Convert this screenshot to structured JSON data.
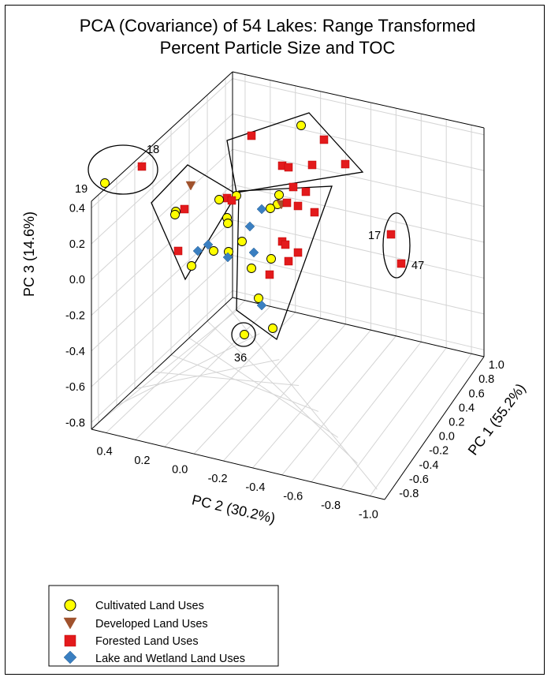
{
  "chart_data": {
    "type": "scatter",
    "title_line1": "PCA (Covariance) of 54 Lakes: Range Transformed",
    "title_line2": "Percent Particle Size and TOC",
    "axes": {
      "pc1": {
        "label": "PC 1 (55.2%)",
        "ticks": [
          "-0.8",
          "-0.6",
          "-0.4",
          "-0.2",
          "0.0",
          "0.2",
          "0.4",
          "0.6",
          "0.8",
          "1.0"
        ]
      },
      "pc2": {
        "label": "PC 2 (30.2%)",
        "ticks": [
          "0.4",
          "0.2",
          "0.0",
          "-0.2",
          "-0.4",
          "-0.6",
          "-0.8",
          "-1.0"
        ]
      },
      "pc3": {
        "label": "PC 3 (14.6%)",
        "ticks": [
          "0.4",
          "0.2",
          "0.0",
          "-0.2",
          "-0.4",
          "-0.6",
          "-0.8"
        ]
      }
    },
    "grid": true,
    "legend_position": "bottom-left",
    "series": [
      {
        "name": "Cultivated Land Uses",
        "marker": "circle",
        "color": "#ffff00"
      },
      {
        "name": "Developed Land Uses",
        "marker": "triangle-down",
        "color": "#a0522d"
      },
      {
        "name": "Forested Land Uses",
        "marker": "square",
        "color": "#e31a1c"
      },
      {
        "name": "Lake and Wetland Land Uses",
        "marker": "diamond",
        "color": "#3a7fc1"
      }
    ],
    "annotations": [
      "18",
      "19",
      "17",
      "47",
      "36"
    ]
  }
}
